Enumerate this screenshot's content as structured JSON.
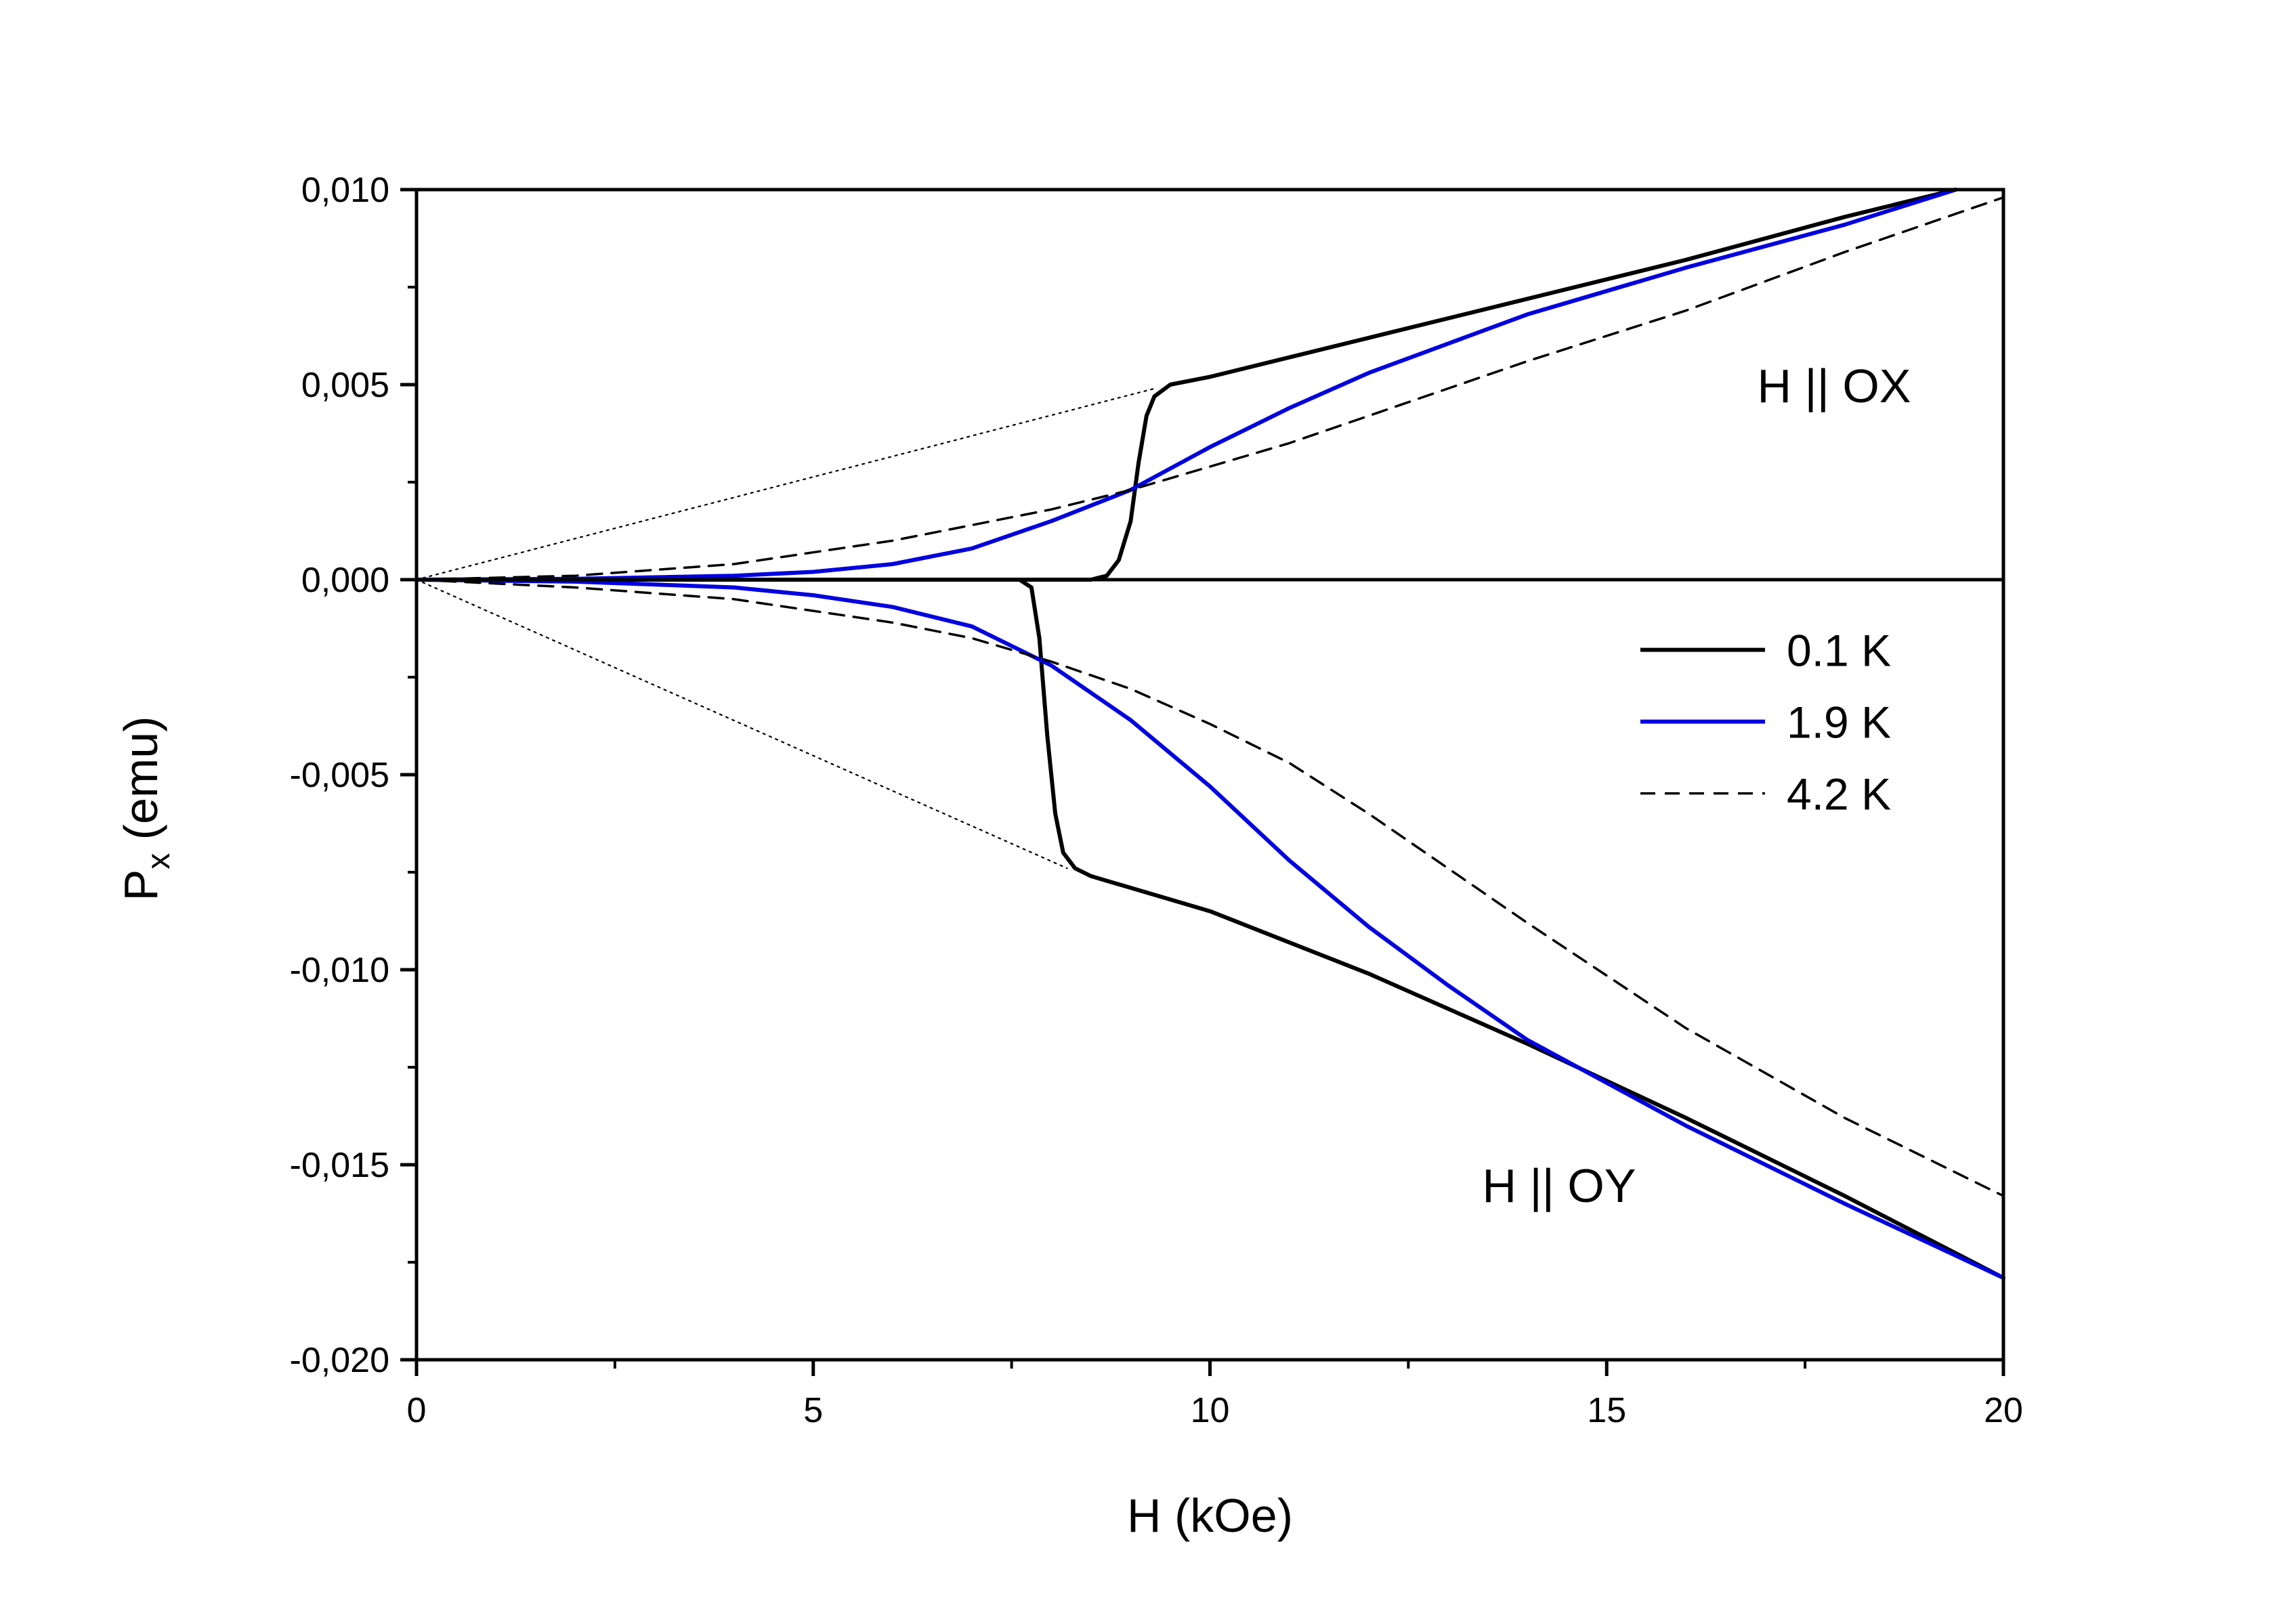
{
  "chart_data": {
    "type": "line",
    "xlabel": "H (kOe)",
    "ylabel": {
      "main": "P",
      "subscript": "x",
      "unit": " (emu)"
    },
    "xlim": [
      0,
      20
    ],
    "ylim": [
      -0.02,
      0.01
    ],
    "x_ticks": [
      0,
      5,
      10,
      15,
      20
    ],
    "x_tick_labels": [
      "0",
      "5",
      "10",
      "15",
      "20"
    ],
    "y_ticks": [
      0.01,
      0.005,
      0.0,
      -0.005,
      -0.01,
      -0.015,
      -0.02
    ],
    "y_tick_labels": [
      "0,010",
      "0,005",
      "0,000",
      "-0,005",
      "-0,010",
      "-0,015",
      "-0,020"
    ],
    "grid": false,
    "legend": {
      "placement": "right-middle",
      "entries": [
        {
          "label": "0.1 K",
          "color": "#000000",
          "style": "solid"
        },
        {
          "label": "1.9 K",
          "color": "#0000e0",
          "style": "solid"
        },
        {
          "label": "4.2 K",
          "color": "#000000",
          "style": "dashed"
        }
      ]
    },
    "annotations": [
      {
        "text": "H || OX",
        "x": 17.5,
        "y": 0.005
      },
      {
        "text": "H || OY",
        "x": 14.4,
        "y": -0.0155
      }
    ],
    "series": [
      {
        "name": "0.1 K",
        "branch": "H || OX",
        "color": "#000000",
        "style": "solid",
        "x": [
          0,
          8.5,
          8.7,
          8.85,
          9.0,
          9.1,
          9.2,
          9.3,
          9.5,
          10,
          12,
          14,
          16,
          18,
          19.4
        ],
        "y": [
          0,
          0,
          0.0001,
          0.0005,
          0.0015,
          0.003,
          0.0042,
          0.0047,
          0.005,
          0.0052,
          0.0062,
          0.0072,
          0.0082,
          0.0093,
          0.01
        ]
      },
      {
        "name": "0.1 K",
        "branch": "H || OY",
        "color": "#000000",
        "style": "solid",
        "x": [
          0,
          7.6,
          7.75,
          7.85,
          7.95,
          8.05,
          8.15,
          8.3,
          8.5,
          10,
          12,
          14,
          16,
          18,
          20
        ],
        "y": [
          0,
          0,
          -0.0002,
          -0.0015,
          -0.004,
          -0.006,
          -0.007,
          -0.0074,
          -0.0076,
          -0.0085,
          -0.0101,
          -0.0119,
          -0.0138,
          -0.0158,
          -0.0179
        ]
      },
      {
        "name": "1.9 K",
        "branch": "H || OX",
        "color": "#0000e0",
        "style": "solid",
        "x": [
          0,
          2,
          4,
          5,
          6,
          7,
          8,
          9,
          10,
          11,
          12,
          14,
          16,
          18,
          19.4
        ],
        "y": [
          0,
          2e-05,
          0.0001,
          0.0002,
          0.0004,
          0.0008,
          0.0015,
          0.0023,
          0.0034,
          0.0044,
          0.0053,
          0.0068,
          0.008,
          0.0091,
          0.01
        ]
      },
      {
        "name": "1.9 K",
        "branch": "H || OY",
        "color": "#0000e0",
        "style": "solid",
        "x": [
          0,
          2,
          4,
          5,
          6,
          7,
          8,
          9,
          10,
          11,
          12,
          13,
          14,
          16,
          18,
          20
        ],
        "y": [
          0,
          -5e-05,
          -0.0002,
          -0.0004,
          -0.0007,
          -0.0012,
          -0.0022,
          -0.0036,
          -0.0053,
          -0.0072,
          -0.0089,
          -0.0104,
          -0.0118,
          -0.014,
          -0.016,
          -0.0179
        ]
      },
      {
        "name": "4.2 K",
        "branch": "H || OX",
        "color": "#000000",
        "style": "dashed",
        "x": [
          0,
          2,
          4,
          6,
          7,
          8,
          9,
          10,
          11,
          12,
          14,
          16,
          18,
          20
        ],
        "y": [
          0,
          0.0001,
          0.0004,
          0.001,
          0.0014,
          0.0018,
          0.0023,
          0.0029,
          0.0035,
          0.0042,
          0.0056,
          0.0069,
          0.0084,
          0.0098
        ]
      },
      {
        "name": "4.2 K",
        "branch": "H || OY",
        "color": "#000000",
        "style": "dashed",
        "x": [
          0,
          2,
          4,
          6,
          7,
          8,
          9,
          10,
          11,
          12,
          13,
          14,
          16,
          18,
          20
        ],
        "y": [
          0,
          -0.0002,
          -0.0005,
          -0.0011,
          -0.0015,
          -0.0021,
          -0.0028,
          -0.0037,
          -0.0047,
          -0.006,
          -0.0074,
          -0.0088,
          -0.0115,
          -0.0138,
          -0.0158
        ]
      },
      {
        "name": "linear guide",
        "branch": "H || OX",
        "color": "#000000",
        "style": "dotted",
        "x": [
          0,
          9.3
        ],
        "y": [
          0,
          0.0049
        ]
      },
      {
        "name": "linear guide",
        "branch": "H || OY",
        "color": "#000000",
        "style": "dotted",
        "x": [
          0,
          8.2
        ],
        "y": [
          0,
          -0.0074
        ]
      }
    ]
  }
}
